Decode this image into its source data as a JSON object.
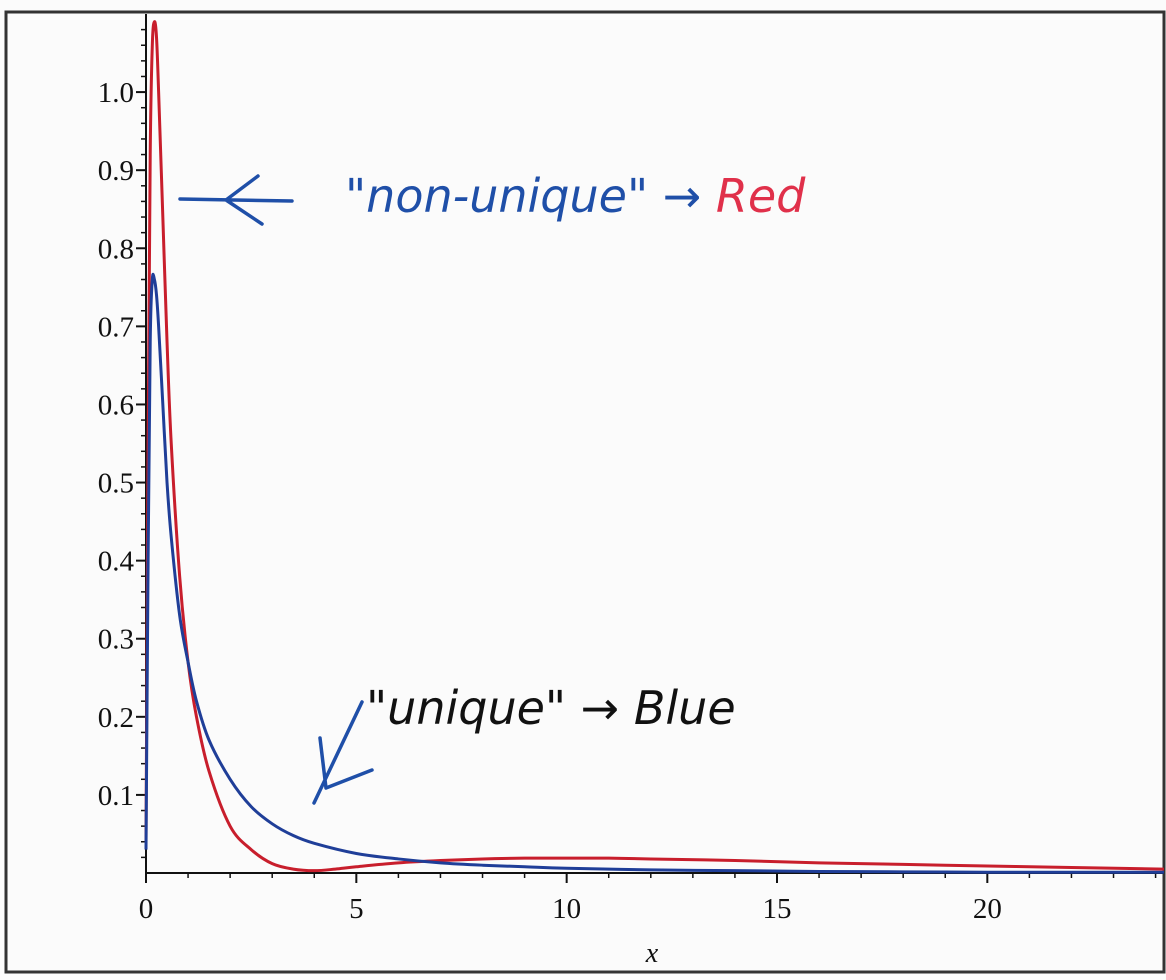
{
  "chart_data": {
    "type": "line",
    "title": "",
    "xlabel": "x",
    "ylabel": "",
    "xlim": [
      0,
      24.2
    ],
    "ylim": [
      0,
      1.1
    ],
    "x_ticks": [
      "0",
      "5",
      "10",
      "15",
      "20"
    ],
    "x_tick_values": [
      0,
      5,
      10,
      15,
      20
    ],
    "y_ticks": [
      "0.1",
      "0.2",
      "0.3",
      "0.4",
      "0.5",
      "0.6",
      "0.7",
      "0.8",
      "0.9",
      "1.0"
    ],
    "y_tick_values": [
      0.1,
      0.2,
      0.3,
      0.4,
      0.5,
      0.6,
      0.7,
      0.8,
      0.9,
      1.0
    ],
    "grid": false,
    "series": [
      {
        "color": "#c81e2c",
        "x": [
          0,
          0.05,
          0.1,
          0.15,
          0.2,
          0.25,
          0.3,
          0.4,
          0.5,
          0.6,
          0.8,
          1.0,
          1.2,
          1.5,
          2.0,
          2.5,
          3.0,
          3.5,
          4.0,
          4.5,
          5.0,
          6.0,
          7.0,
          8.0,
          9.0,
          10.0,
          11.0,
          12.0,
          14.0,
          16.0,
          18.0,
          20.0,
          22.0,
          24.2
        ],
        "values": [
          0.04,
          0.55,
          0.92,
          1.06,
          1.09,
          1.07,
          1.0,
          0.84,
          0.68,
          0.55,
          0.38,
          0.27,
          0.2,
          0.13,
          0.06,
          0.03,
          0.012,
          0.005,
          0.003,
          0.005,
          0.008,
          0.013,
          0.016,
          0.018,
          0.019,
          0.019,
          0.019,
          0.018,
          0.016,
          0.013,
          0.011,
          0.009,
          0.007,
          0.005
        ]
      },
      {
        "color": "#1f3e98",
        "x": [
          0,
          0.05,
          0.1,
          0.15,
          0.2,
          0.25,
          0.3,
          0.4,
          0.5,
          0.6,
          0.8,
          1.0,
          1.2,
          1.5,
          2.0,
          2.5,
          3.0,
          3.5,
          4.0,
          5.0,
          6.0,
          7.0,
          8.0,
          9.0,
          10.0,
          12.0,
          14.0,
          16.0,
          18.0,
          20.0,
          22.0,
          24.2
        ],
        "values": [
          0.03,
          0.4,
          0.68,
          0.76,
          0.76,
          0.74,
          0.7,
          0.6,
          0.5,
          0.43,
          0.33,
          0.27,
          0.22,
          0.17,
          0.12,
          0.085,
          0.063,
          0.048,
          0.038,
          0.025,
          0.018,
          0.013,
          0.01,
          0.008,
          0.006,
          0.004,
          0.003,
          0.002,
          0.0015,
          0.001,
          0.001,
          0.001
        ]
      }
    ],
    "annotations": [
      {
        "text": "\"non-unique\" → ",
        "color": "#1f4fa8"
      },
      {
        "text": "Red",
        "color": "#e0304a"
      },
      {
        "text": "\"unique\" → Blue",
        "color": "#1f4fa8"
      }
    ]
  }
}
